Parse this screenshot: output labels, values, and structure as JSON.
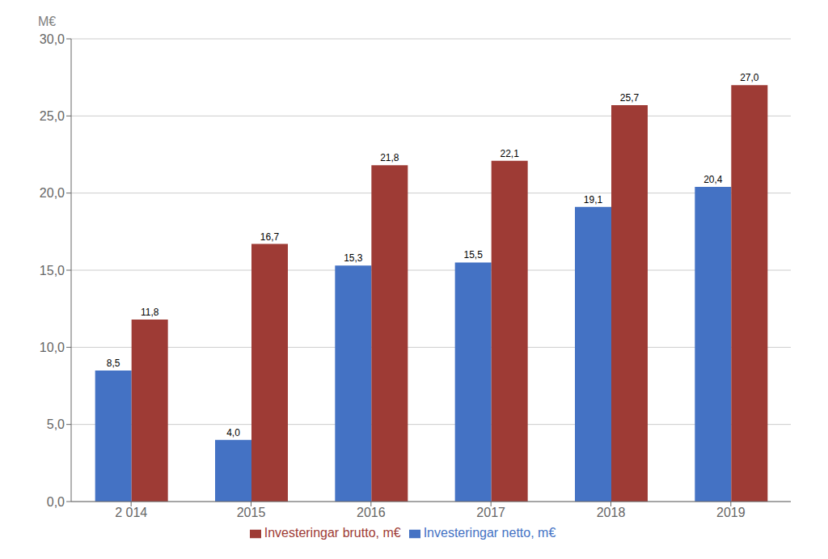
{
  "chart_data": {
    "type": "bar",
    "ylabel": "M€",
    "categories": [
      "2 014",
      "2015",
      "2016",
      "2017",
      "2018",
      "2019"
    ],
    "series": [
      {
        "name": "Investeringar netto, m€",
        "color": "#4472C4",
        "values": [
          8.5,
          4.0,
          15.3,
          15.5,
          19.1,
          20.4
        ],
        "value_labels": [
          "8,5",
          "4,0",
          "15,3",
          "15,5",
          "19,1",
          "20,4"
        ]
      },
      {
        "name": "Investeringar brutto, m€",
        "color": "#9E3B35",
        "values": [
          11.8,
          16.7,
          21.8,
          22.1,
          25.7,
          27.0
        ],
        "value_labels": [
          "11,8",
          "16,7",
          "21,8",
          "22,1",
          "25,7",
          "27,0"
        ]
      }
    ],
    "ylim": [
      0,
      30
    ],
    "yticks": [
      {
        "value": 0,
        "label": "0,0"
      },
      {
        "value": 5,
        "label": "5,0"
      },
      {
        "value": 10,
        "label": "10,0"
      },
      {
        "value": 15,
        "label": "15,0"
      },
      {
        "value": 20,
        "label": "20,0"
      },
      {
        "value": 25,
        "label": "25,0"
      },
      {
        "value": 30,
        "label": "30,0"
      }
    ],
    "grid": true,
    "data_labels": true,
    "legend": "bottom"
  }
}
